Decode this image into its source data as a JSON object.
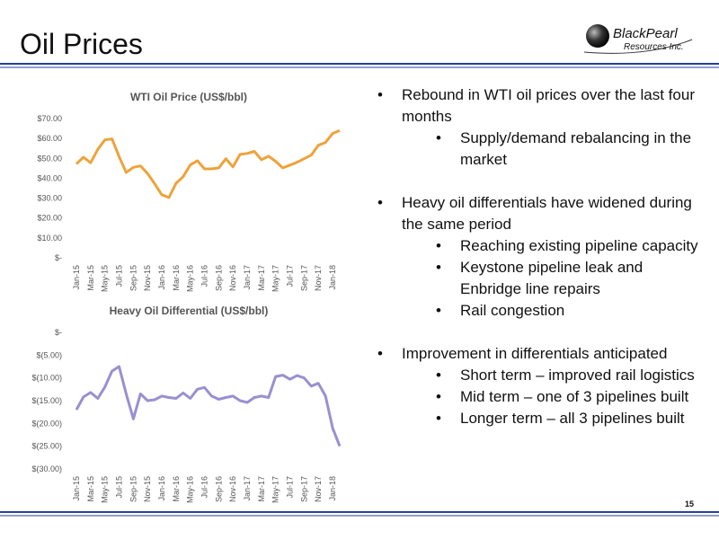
{
  "slide_title": "Oil Prices",
  "logo": {
    "name": "BlackPearl",
    "subtitle": "Resources Inc."
  },
  "page_number": "15",
  "bullets": [
    {
      "text": "Rebound in WTI oil prices over the last four months",
      "sub": [
        "Supply/demand rebalancing in the market"
      ]
    },
    {
      "text": "Heavy oil differentials have widened during the same period",
      "sub": [
        "Reaching existing pipeline capacity",
        "Keystone pipeline leak and Enbridge line repairs",
        "Rail congestion"
      ]
    },
    {
      "text": "Improvement in differentials anticipated",
      "sub": [
        "Short term – improved rail logistics",
        "Mid term – one of 3 pipelines built",
        "Longer term – all 3 pipelines built"
      ]
    }
  ],
  "chart_data": [
    {
      "type": "line",
      "title": "WTI Oil Price (US$/bbl)",
      "categories": [
        "Jan-15",
        null,
        "Mar-15",
        null,
        "May-15",
        null,
        "Jul-15",
        null,
        "Sep-15",
        null,
        "Nov-15",
        null,
        "Jan-16",
        null,
        "Mar-16",
        null,
        "May-16",
        null,
        "Jul-16",
        null,
        "Sep-16",
        null,
        "Nov-16",
        null,
        "Jan-17",
        null,
        "Mar-17",
        null,
        "May-17",
        null,
        "Jul-17",
        null,
        "Sep-17",
        null,
        "Nov-17",
        null,
        "Jan-18",
        null
      ],
      "series": [
        {
          "color": "#eda33b",
          "values": [
            47.2,
            50.6,
            47.8,
            54.5,
            59.3,
            59.8,
            50.9,
            42.9,
            45.5,
            46.2,
            42.4,
            37.2,
            31.7,
            30.3,
            37.5,
            40.8,
            46.7,
            48.8,
            44.7,
            44.7,
            45.2,
            49.8,
            45.7,
            52.0,
            52.5,
            53.5,
            49.3,
            51.1,
            48.5,
            45.2,
            46.6,
            48.0,
            49.8,
            51.6,
            56.6,
            58.0,
            62.5,
            64.0
          ]
        }
      ],
      "ylim": [
        0,
        70
      ],
      "yticks": [
        {
          "value": 0,
          "label": "$-"
        },
        {
          "value": 10,
          "label": "$10.00"
        },
        {
          "value": 20,
          "label": "$20.00"
        },
        {
          "value": 30,
          "label": "$30.00"
        },
        {
          "value": 40,
          "label": "$40.00"
        },
        {
          "value": 50,
          "label": "$50.00"
        },
        {
          "value": 60,
          "label": "$60.00"
        },
        {
          "value": 70,
          "label": "$70.00"
        }
      ],
      "grid": false
    },
    {
      "type": "line",
      "title": "Heavy Oil Differential (US$/bbl)",
      "categories": [
        "Jan-15",
        null,
        "Mar-15",
        null,
        "May-15",
        null,
        "Jul-15",
        null,
        "Sep-15",
        null,
        "Nov-15",
        null,
        "Jan-16",
        null,
        "Mar-16",
        null,
        "May-16",
        null,
        "Jul-16",
        null,
        "Sep-16",
        null,
        "Nov-16",
        null,
        "Jan-17",
        null,
        "Mar-17",
        null,
        "May-17",
        null,
        "Jul-17",
        null,
        "Sep-17",
        null,
        "Nov-17",
        null,
        "Jan-18",
        null
      ],
      "series": [
        {
          "color": "#9b8fd0",
          "values": [
            -17,
            -14.2,
            -13.2,
            -14.5,
            -12,
            -8.5,
            -7.5,
            -13.5,
            -19,
            -13.5,
            -15,
            -14.8,
            -14,
            -14.3,
            -14.5,
            -13.3,
            -14.5,
            -12.5,
            -12.1,
            -14,
            -14.7,
            -14.3,
            -14,
            -15,
            -15.4,
            -14.3,
            -14,
            -14.3,
            -9.7,
            -9.4,
            -10.3,
            -9.5,
            -10,
            -11.8,
            -11.2,
            -14,
            -21,
            -25
          ]
        }
      ],
      "ylim": [
        -30,
        0
      ],
      "yticks": [
        {
          "value": 0,
          "label": "$-"
        },
        {
          "value": -5,
          "label": "$(5.00)"
        },
        {
          "value": -10,
          "label": "$(10.00)"
        },
        {
          "value": -15,
          "label": "$(15.00)"
        },
        {
          "value": -20,
          "label": "$(20.00)"
        },
        {
          "value": -25,
          "label": "$(25.00)"
        },
        {
          "value": -30,
          "label": "$(30.00)"
        }
      ],
      "grid": false
    }
  ]
}
